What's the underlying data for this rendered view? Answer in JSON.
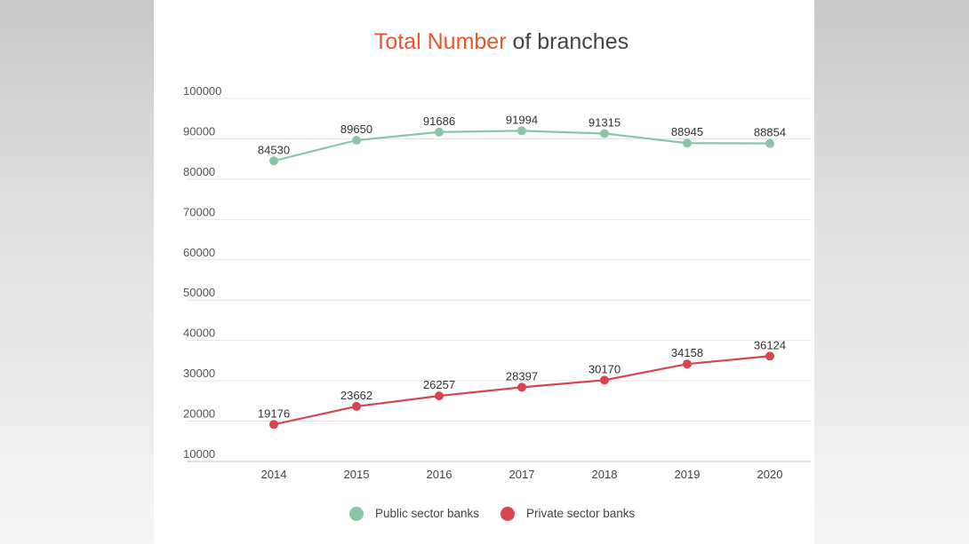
{
  "chart_data": {
    "type": "line",
    "title": {
      "highlight": "Total Number",
      "rest": " of branches"
    },
    "title_highlight_color": "#e8552e",
    "title_color": "#444444",
    "categories": [
      "2014",
      "2015",
      "2016",
      "2017",
      "2018",
      "2019",
      "2020"
    ],
    "yticks": [
      "10000",
      "20000",
      "30000",
      "40000",
      "50000",
      "60000",
      "70000",
      "80000",
      "90000",
      "100000"
    ],
    "ylim": [
      10000,
      100000
    ],
    "grid": true,
    "legend_position": "bottom",
    "series": [
      {
        "name": "Public sector banks",
        "color": "#8cc4a8",
        "values": [
          84530,
          89650,
          91686,
          91994,
          91315,
          88945,
          88854
        ],
        "labels": [
          "84530",
          "89650",
          "91686",
          "91994",
          "91315",
          "88945",
          "88854"
        ]
      },
      {
        "name": "Private sector banks",
        "color": "#d64550",
        "values": [
          19176,
          23662,
          26257,
          28397,
          30170,
          34158,
          36124
        ],
        "labels": [
          "19176",
          "23662",
          "26257",
          "28397",
          "30170",
          "34158",
          "36124"
        ]
      }
    ]
  }
}
